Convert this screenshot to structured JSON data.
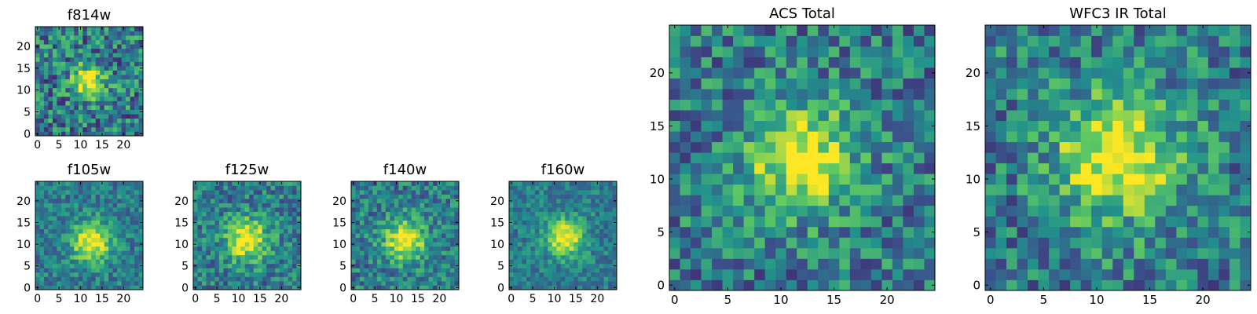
{
  "chart_data": [
    {
      "type": "heatmap",
      "title": "f814w",
      "xticks": [
        "0",
        "5",
        "10",
        "15",
        "20"
      ],
      "yticks": [
        "0",
        "5",
        "10",
        "15",
        "20"
      ],
      "xlim": [
        -0.5,
        24.5
      ],
      "ylim": [
        -0.5,
        24.5
      ],
      "grid_size": 25,
      "center": [
        12,
        12
      ],
      "spread": 2.6,
      "noise": 0.3,
      "seed": 11,
      "colormap": [
        "#440154",
        "#3b528b",
        "#21918c",
        "#5ec962",
        "#fde725"
      ]
    },
    {
      "type": "heatmap",
      "title": "f105w",
      "xticks": [
        "0",
        "5",
        "10",
        "15",
        "20"
      ],
      "yticks": [
        "0",
        "5",
        "10",
        "15",
        "20"
      ],
      "xlim": [
        -0.5,
        24.5
      ],
      "ylim": [
        -0.5,
        24.5
      ],
      "grid_size": 25,
      "center": [
        12.5,
        10.5
      ],
      "spread": 3.2,
      "noise": 0.18,
      "seed": 23,
      "colormap": [
        "#440154",
        "#3b528b",
        "#21918c",
        "#5ec962",
        "#fde725"
      ]
    },
    {
      "type": "heatmap",
      "title": "f125w",
      "xticks": [
        "0",
        "5",
        "10",
        "15",
        "20"
      ],
      "yticks": [
        "0",
        "5",
        "10",
        "15",
        "20"
      ],
      "xlim": [
        -0.5,
        24.5
      ],
      "ylim": [
        -0.5,
        24.5
      ],
      "grid_size": 25,
      "center": [
        12,
        11
      ],
      "spread": 3.4,
      "noise": 0.22,
      "seed": 37,
      "colormap": [
        "#440154",
        "#3b528b",
        "#21918c",
        "#5ec962",
        "#fde725"
      ]
    },
    {
      "type": "heatmap",
      "title": "f140w",
      "xticks": [
        "0",
        "5",
        "10",
        "15",
        "20"
      ],
      "yticks": [
        "0",
        "5",
        "10",
        "15",
        "20"
      ],
      "xlim": [
        -0.5,
        24.5
      ],
      "ylim": [
        -0.5,
        24.5
      ],
      "grid_size": 25,
      "center": [
        12,
        11
      ],
      "spread": 3.3,
      "noise": 0.22,
      "seed": 41,
      "colormap": [
        "#440154",
        "#3b528b",
        "#21918c",
        "#5ec962",
        "#fde725"
      ]
    },
    {
      "type": "heatmap",
      "title": "f160w",
      "xticks": [
        "0",
        "5",
        "10",
        "15",
        "20"
      ],
      "yticks": [
        "0",
        "5",
        "10",
        "15",
        "20"
      ],
      "xlim": [
        -0.5,
        24.5
      ],
      "ylim": [
        -0.5,
        24.5
      ],
      "grid_size": 25,
      "center": [
        12.5,
        11.5
      ],
      "spread": 3.0,
      "noise": 0.16,
      "seed": 53,
      "colormap": [
        "#440154",
        "#3b528b",
        "#21918c",
        "#5ec962",
        "#fde725"
      ]
    },
    {
      "type": "heatmap",
      "title": "ACS Total",
      "xticks": [
        "0",
        "5",
        "10",
        "15",
        "20"
      ],
      "yticks": [
        "0",
        "5",
        "10",
        "15",
        "20"
      ],
      "xlim": [
        -0.5,
        24.5
      ],
      "ylim": [
        -0.5,
        24.5
      ],
      "grid_size": 25,
      "center": [
        12,
        12
      ],
      "spread": 3.4,
      "noise": 0.26,
      "seed": 67,
      "colormap": [
        "#440154",
        "#3b528b",
        "#21918c",
        "#5ec962",
        "#fde725"
      ]
    },
    {
      "type": "heatmap",
      "title": "WFC3 IR Total",
      "xticks": [
        "0",
        "5",
        "10",
        "15",
        "20"
      ],
      "yticks": [
        "0",
        "5",
        "10",
        "15",
        "20"
      ],
      "xlim": [
        -0.5,
        24.5
      ],
      "ylim": [
        -0.5,
        24.5
      ],
      "grid_size": 25,
      "center": [
        12,
        12
      ],
      "spread": 4.0,
      "noise": 0.26,
      "seed": 79,
      "colormap": [
        "#440154",
        "#3b528b",
        "#21918c",
        "#5ec962",
        "#fde725"
      ]
    }
  ]
}
